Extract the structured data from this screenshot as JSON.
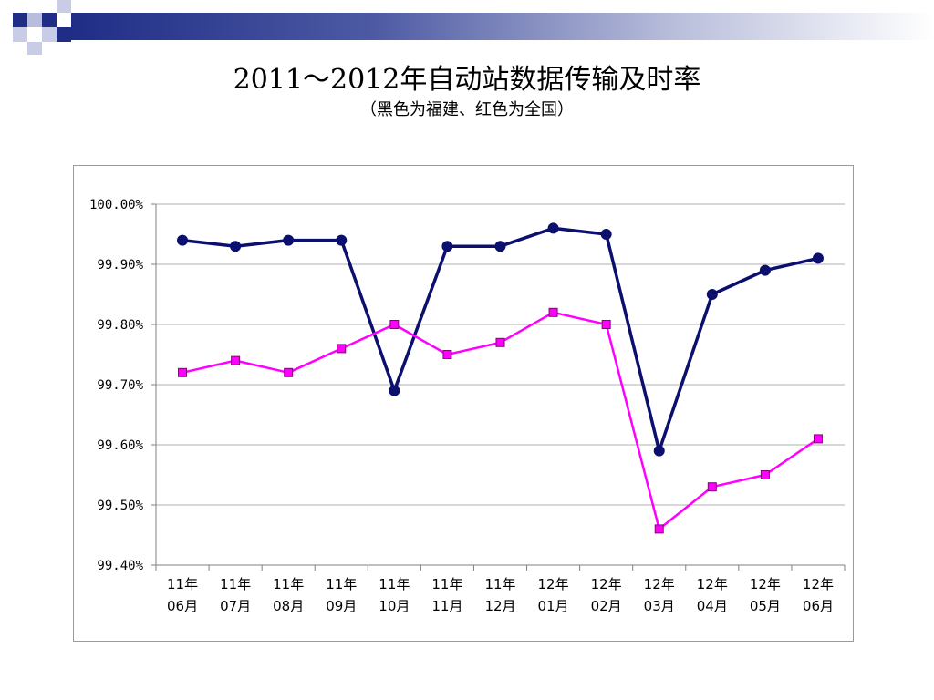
{
  "slide": {
    "title": "2011～2012年自动站数据传输及时率",
    "subtitle": "（黑色为福建、红色为全国）"
  },
  "chart_data": {
    "type": "line",
    "title": "2011～2012年自动站数据传输及时率",
    "subtitle": "（黑色为福建、红色为全国）",
    "categories": [
      [
        "11年",
        "06月"
      ],
      [
        "11年",
        "07月"
      ],
      [
        "11年",
        "08月"
      ],
      [
        "11年",
        "09月"
      ],
      [
        "11年",
        "10月"
      ],
      [
        "11年",
        "11月"
      ],
      [
        "11年",
        "12月"
      ],
      [
        "12年",
        "01月"
      ],
      [
        "12年",
        "02月"
      ],
      [
        "12年",
        "03月"
      ],
      [
        "12年",
        "04月"
      ],
      [
        "12年",
        "05月"
      ],
      [
        "12年",
        "06月"
      ]
    ],
    "series": [
      {
        "color": "#0b0f6e",
        "marker": "circle",
        "values": [
          99.94,
          99.93,
          99.94,
          99.94,
          99.69,
          99.93,
          99.93,
          99.96,
          99.95,
          99.59,
          99.85,
          99.89,
          99.91
        ]
      },
      {
        "color": "#ff00ff",
        "marker": "square",
        "values": [
          99.72,
          99.74,
          99.72,
          99.76,
          99.8,
          99.75,
          99.77,
          99.82,
          99.8,
          99.46,
          99.53,
          99.55,
          99.61
        ]
      }
    ],
    "ylim": [
      99.4,
      100.0
    ],
    "yticks": [
      "99.40%",
      "99.50%",
      "99.60%",
      "99.70%",
      "99.80%",
      "99.90%",
      "100.00%"
    ],
    "ytick_values": [
      99.4,
      99.5,
      99.6,
      99.7,
      99.8,
      99.9,
      100.0
    ],
    "grid": true,
    "legend": "none"
  }
}
